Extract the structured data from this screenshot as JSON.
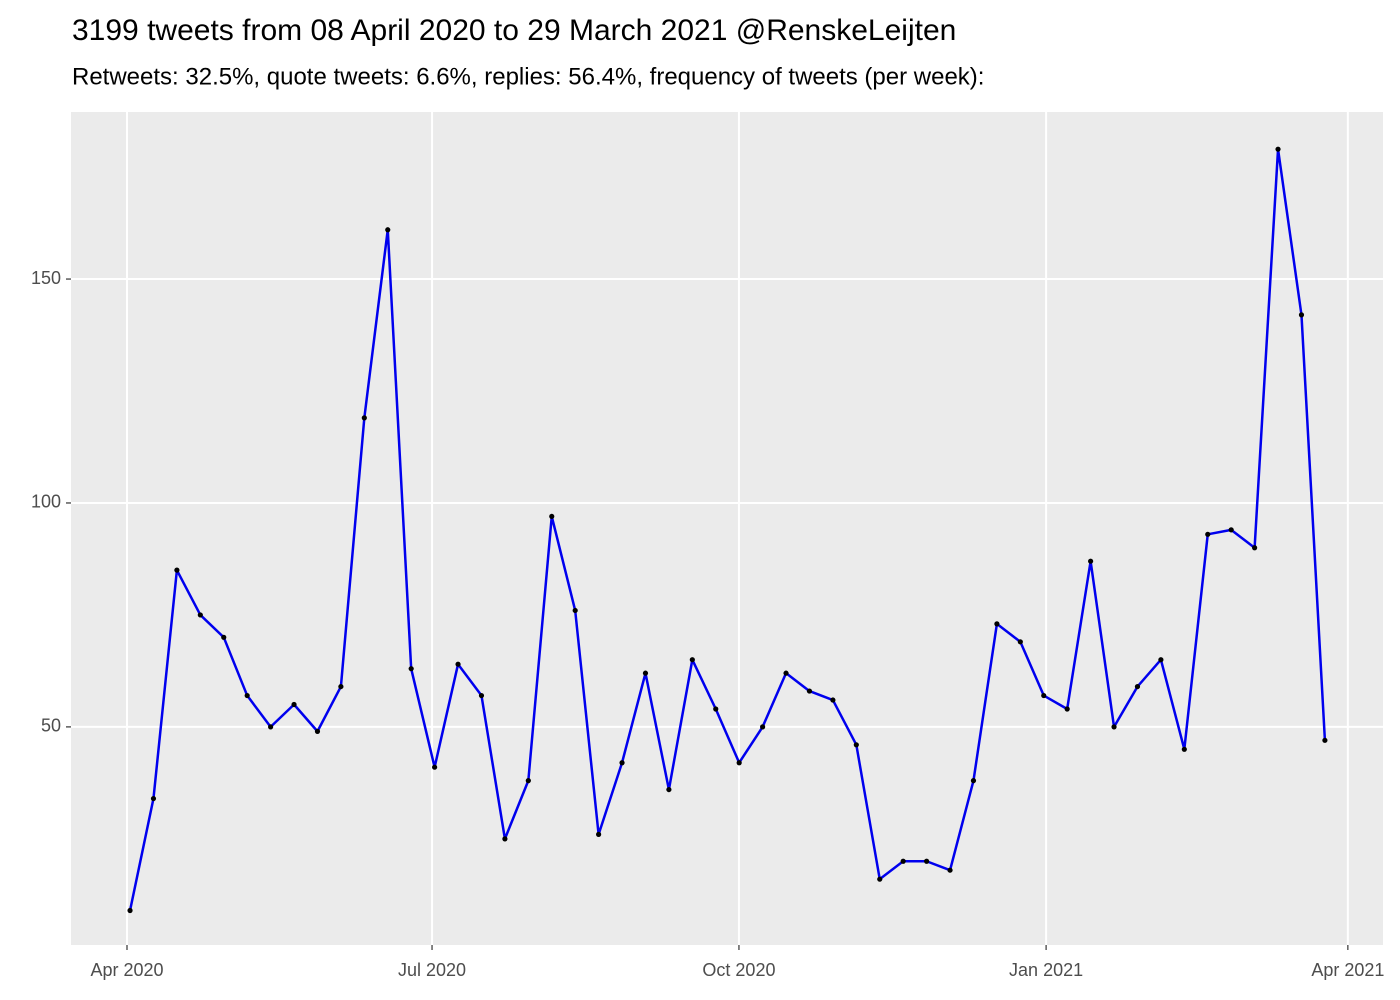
{
  "chart_data": {
    "type": "line",
    "title": "3199 tweets from 08 April 2020 to 29 March 2021 @RenskeLeijten",
    "subtitle": "Retweets: 32.5%, quote tweets: 6.6%, replies: 56.4%, frequency of tweets (per week):",
    "categories": [
      null,
      null,
      null,
      null,
      null,
      null,
      null,
      null,
      null,
      null,
      null,
      null,
      null,
      null,
      null,
      null,
      null,
      null,
      null,
      null,
      null,
      null,
      null,
      null,
      null,
      null,
      null,
      null,
      null,
      null,
      null,
      null,
      null,
      null,
      null,
      null,
      null,
      null,
      null,
      null,
      null,
      null,
      null,
      null,
      null,
      null,
      null,
      null,
      null,
      null,
      null,
      null
    ],
    "values": [
      9,
      34,
      85,
      75,
      70,
      57,
      50,
      55,
      49,
      59,
      119,
      161,
      63,
      41,
      64,
      57,
      25,
      38,
      97,
      76,
      26,
      42,
      62,
      36,
      65,
      54,
      42,
      50,
      62,
      58,
      56,
      46,
      16,
      20,
      20,
      18,
      38,
      73,
      69,
      57,
      54,
      87,
      50,
      59,
      65,
      45,
      93,
      94,
      90,
      179,
      142,
      47
    ],
    "color": "#0000ee",
    "marker_color": "#000000",
    "xlim": [
      -2.52,
      53.48
    ],
    "xticks": [
      {
        "value": -0.13,
        "label": "Apr 2020"
      },
      {
        "value": 12.89,
        "label": "Jul 2020"
      },
      {
        "value": 25.99,
        "label": "Oct 2020"
      },
      {
        "value": 39.1,
        "label": "Jan 2021"
      },
      {
        "value": 51.98,
        "label": "Apr 2021"
      }
    ],
    "ylim": [
      1.3,
      187.3
    ],
    "yticks": [
      50,
      100,
      150
    ],
    "grid": true
  }
}
